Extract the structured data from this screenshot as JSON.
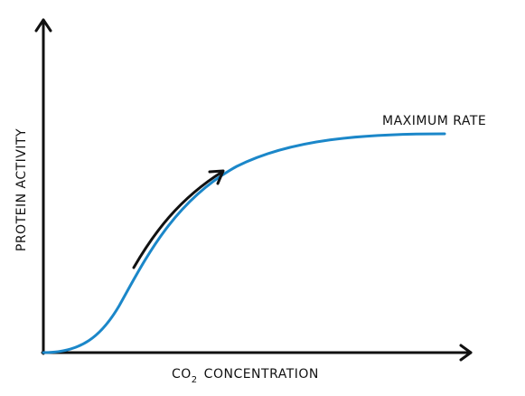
{
  "y_axis_label": "PROTEIN ACTIVITY",
  "x_axis_label": {
    "main": "CO",
    "subscript": "2",
    "rest": "CONCENTRATION"
  },
  "annotation": "MAXIMUM RATE"
}
